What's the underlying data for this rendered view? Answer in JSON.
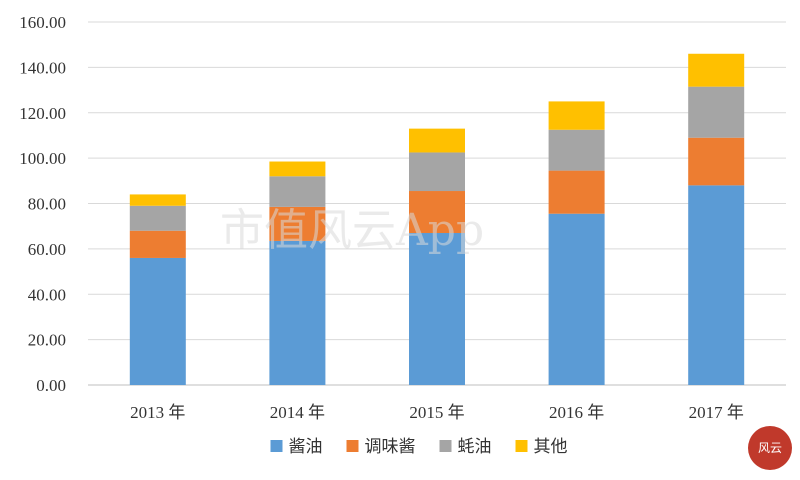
{
  "chart_data": {
    "type": "bar",
    "stacked": true,
    "categories": [
      "2013 年",
      "2014 年",
      "2015 年",
      "2016 年",
      "2017 年"
    ],
    "series": [
      {
        "name": "酱油",
        "color": "#5b9bd5",
        "values": [
          56.0,
          63.5,
          67.0,
          75.5,
          88.0
        ]
      },
      {
        "name": "调味酱",
        "color": "#ed7d31",
        "values": [
          12.0,
          15.0,
          18.5,
          19.0,
          21.0
        ]
      },
      {
        "name": "蚝油",
        "color": "#a5a5a5",
        "values": [
          11.0,
          13.5,
          17.0,
          18.0,
          22.5
        ]
      },
      {
        "name": "其他",
        "color": "#ffc000",
        "values": [
          5.0,
          6.5,
          10.5,
          12.5,
          14.5
        ]
      }
    ],
    "ylim": [
      0,
      160
    ],
    "yticks": [
      "0.00",
      "20.00",
      "40.00",
      "60.00",
      "80.00",
      "100.00",
      "120.00",
      "140.00",
      "160.00"
    ],
    "grid": true,
    "legend_position": "bottom"
  },
  "watermark": {
    "text": "市值风云App"
  },
  "seal": {
    "text": "风云"
  }
}
